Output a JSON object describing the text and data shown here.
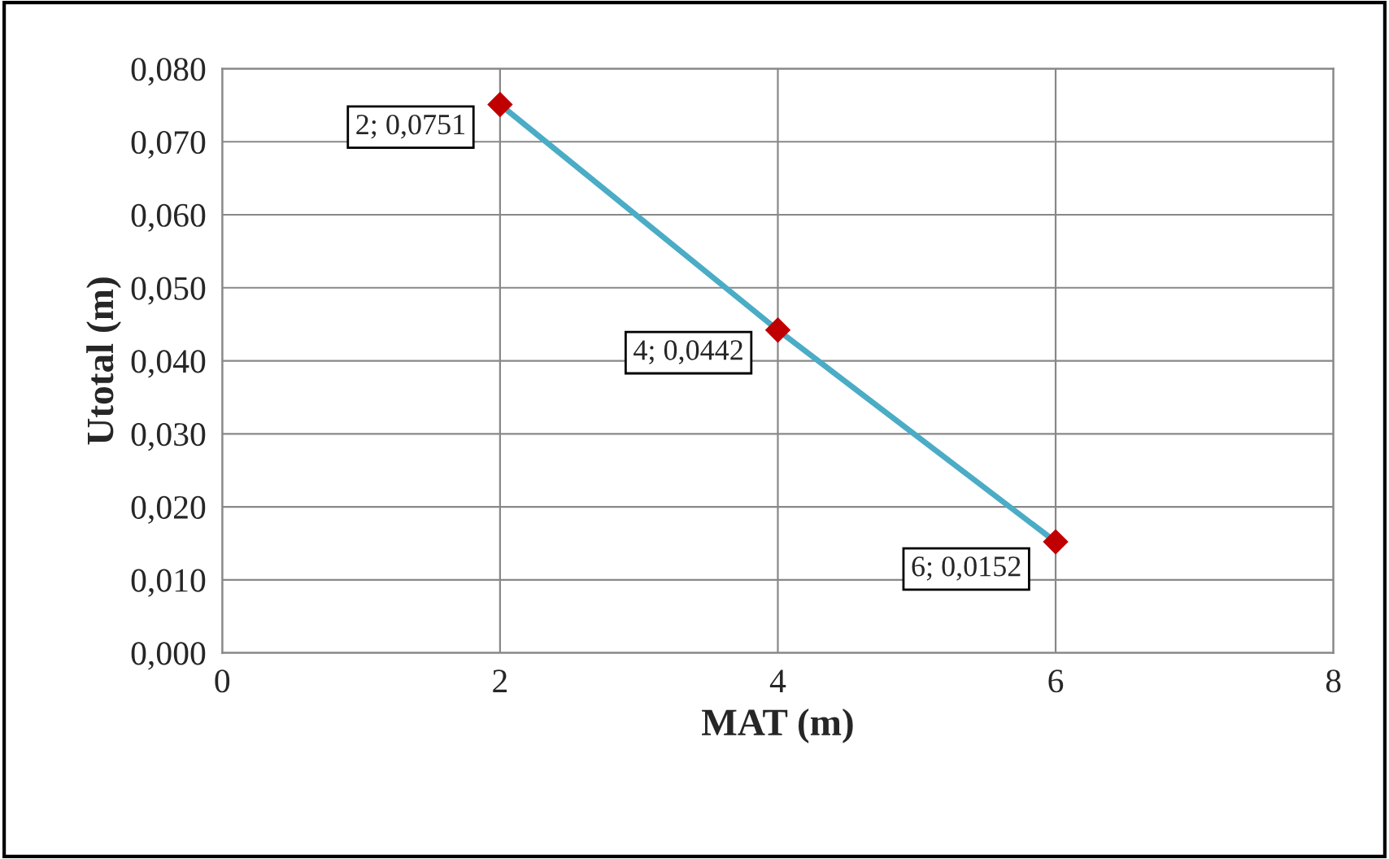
{
  "chart_data": {
    "type": "line",
    "xlabel": "MAT (m)",
    "ylabel": "Utotal (m)",
    "x": [
      2,
      4,
      6
    ],
    "series": [
      {
        "color": "#4bacc6",
        "values": [
          0.0751,
          0.0442,
          0.0152
        ],
        "value_labels": [
          "2; 0,0751",
          "4; 0,0442",
          "6; 0,0152"
        ]
      }
    ],
    "xlim": [
      0,
      8
    ],
    "xticks": [
      0,
      2,
      4,
      6,
      8
    ],
    "ylim": [
      0,
      0.08
    ],
    "yticks": [
      {
        "value": 0,
        "label": "0,000"
      },
      {
        "value": 0.01,
        "label": "0,010"
      },
      {
        "value": 0.02,
        "label": "0,020"
      },
      {
        "value": 0.03,
        "label": "0,030"
      },
      {
        "value": 0.04,
        "label": "0,040"
      },
      {
        "value": 0.05,
        "label": "0,050"
      },
      {
        "value": 0.06,
        "label": "0,060"
      },
      {
        "value": 0.07,
        "label": "0,070"
      },
      {
        "value": 0.08,
        "label": "0,080"
      }
    ],
    "grid": true,
    "marker": "diamond",
    "line_style": "solid"
  }
}
